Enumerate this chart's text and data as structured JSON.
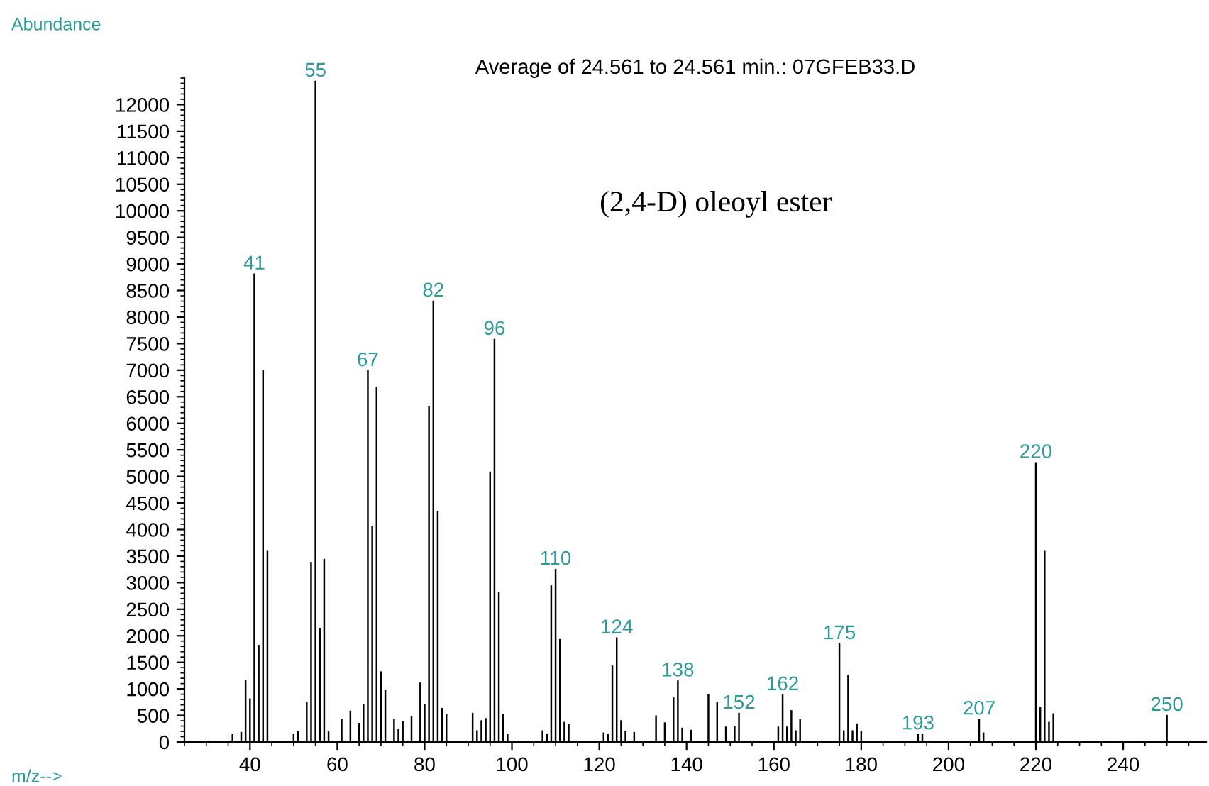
{
  "chart_data": {
    "type": "bar",
    "title": "Average of 24.561 to 24.561 min.: 07GFEB33.D",
    "xlabel": "m/z-->",
    "ylabel": "Abundance",
    "annotations": [
      "(2,4-D) oleoyl ester",
      {
        "text": "41",
        "x": 41,
        "y": 8820
      },
      {
        "text": "55",
        "x": 55,
        "y": 12450
      },
      {
        "text": "67",
        "x": 67,
        "y": 7000
      },
      {
        "text": "82",
        "x": 82,
        "y": 8310
      },
      {
        "text": "96",
        "x": 96,
        "y": 7590
      },
      {
        "text": "110",
        "x": 110,
        "y": 3260
      },
      {
        "text": "124",
        "x": 124,
        "y": 1970
      },
      {
        "text": "138",
        "x": 138,
        "y": 1160
      },
      {
        "text": "152",
        "x": 152,
        "y": 550
      },
      {
        "text": "162",
        "x": 162,
        "y": 900
      },
      {
        "text": "175",
        "x": 175,
        "y": 1860
      },
      {
        "text": "193",
        "x": 193,
        "y": 160
      },
      {
        "text": "207",
        "x": 207,
        "y": 440
      },
      {
        "text": "220",
        "x": 220,
        "y": 5270
      },
      {
        "text": "250",
        "x": 250,
        "y": 510
      }
    ],
    "x": [
      36,
      38,
      39,
      40,
      41,
      42,
      43,
      44,
      50,
      51,
      53,
      54,
      55,
      56,
      57,
      58,
      61,
      63,
      65,
      66,
      67,
      68,
      69,
      70,
      71,
      73,
      74,
      75,
      77,
      79,
      80,
      81,
      82,
      83,
      84,
      85,
      91,
      92,
      93,
      94,
      95,
      96,
      97,
      98,
      99,
      107,
      108,
      109,
      110,
      111,
      112,
      113,
      121,
      122,
      123,
      124,
      125,
      126,
      128,
      133,
      135,
      137,
      138,
      139,
      141,
      145,
      147,
      149,
      151,
      152,
      161,
      162,
      163,
      164,
      165,
      166,
      175,
      176,
      177,
      178,
      179,
      180,
      193,
      194,
      207,
      208,
      220,
      221,
      222,
      223,
      224,
      250
    ],
    "values": [
      160,
      190,
      1160,
      820,
      8820,
      1830,
      7000,
      3600,
      160,
      200,
      750,
      3390,
      12450,
      2150,
      3450,
      200,
      430,
      590,
      360,
      720,
      7000,
      4070,
      6680,
      1330,
      990,
      430,
      250,
      400,
      490,
      1120,
      720,
      6320,
      8310,
      4340,
      640,
      530,
      550,
      220,
      410,
      450,
      5090,
      7590,
      2820,
      530,
      150,
      220,
      160,
      2950,
      3260,
      1940,
      380,
      340,
      180,
      160,
      1440,
      1970,
      410,
      200,
      190,
      500,
      370,
      840,
      1160,
      270,
      230,
      900,
      750,
      290,
      300,
      550,
      290,
      900,
      290,
      600,
      220,
      430,
      1860,
      220,
      1270,
      220,
      350,
      200,
      160,
      160,
      440,
      180,
      5270,
      660,
      3600,
      380,
      540,
      510
    ],
    "color": "#000000",
    "xlim": [
      25,
      259
    ],
    "xticks": [
      40,
      60,
      80,
      100,
      120,
      140,
      160,
      180,
      200,
      220,
      240
    ],
    "ylim": [
      0,
      12500
    ],
    "yticks": [
      0,
      500,
      1000,
      1500,
      2000,
      2500,
      3000,
      3500,
      4000,
      4500,
      5000,
      5500,
      6000,
      6500,
      7000,
      7500,
      8000,
      8500,
      9000,
      9500,
      10000,
      10500,
      11000,
      11500,
      12000
    ],
    "grid": false,
    "legend": false
  }
}
